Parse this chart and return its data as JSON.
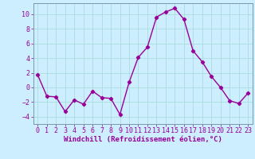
{
  "x": [
    0,
    1,
    2,
    3,
    4,
    5,
    6,
    7,
    8,
    9,
    10,
    11,
    12,
    13,
    14,
    15,
    16,
    17,
    18,
    19,
    20,
    21,
    22,
    23
  ],
  "y": [
    1.7,
    -1.2,
    -1.3,
    -3.3,
    -1.7,
    -2.3,
    -0.5,
    -1.4,
    -1.5,
    -3.7,
    0.7,
    4.1,
    5.5,
    9.6,
    10.3,
    10.8,
    9.3,
    5.0,
    3.5,
    1.5,
    0.0,
    -1.8,
    -2.2,
    -0.8
  ],
  "line_color": "#990099",
  "marker": "D",
  "marker_size": 2.2,
  "bg_color": "#cceeff",
  "grid_color": "#aadddd",
  "xlabel": "Windchill (Refroidissement éolien,°C)",
  "ylim": [
    -5,
    11.5
  ],
  "xlim": [
    -0.5,
    23.5
  ],
  "yticks": [
    -4,
    -2,
    0,
    2,
    4,
    6,
    8,
    10
  ],
  "xticks": [
    0,
    1,
    2,
    3,
    4,
    5,
    6,
    7,
    8,
    9,
    10,
    11,
    12,
    13,
    14,
    15,
    16,
    17,
    18,
    19,
    20,
    21,
    22,
    23
  ],
  "xlabel_fontsize": 6.5,
  "tick_fontsize": 6.0,
  "line_width": 1.0
}
